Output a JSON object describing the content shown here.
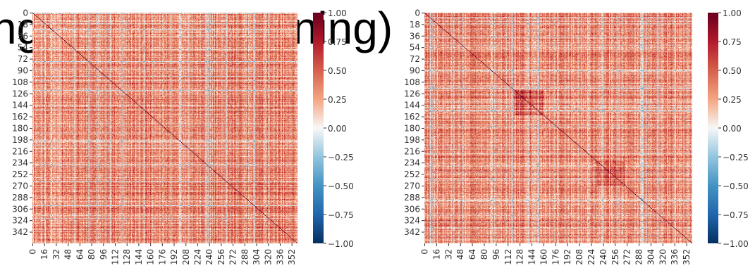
{
  "background_text": "ng                    ning)",
  "chart_data": [
    {
      "type": "heatmap",
      "title": "",
      "xlabel": "",
      "ylabel": "",
      "n": 360,
      "x_tick_labels": [
        "0",
        "16",
        "32",
        "48",
        "64",
        "80",
        "96",
        "112",
        "128",
        "144",
        "160",
        "176",
        "192",
        "208",
        "224",
        "240",
        "256",
        "272",
        "288",
        "304",
        "320",
        "336",
        "352"
      ],
      "y_tick_labels": [
        "0",
        "18",
        "36",
        "54",
        "72",
        "90",
        "108",
        "126",
        "144",
        "162",
        "180",
        "198",
        "216",
        "234",
        "252",
        "270",
        "288",
        "306",
        "324",
        "342"
      ],
      "diagonal_value": 1.0,
      "colorbar": {
        "range": [
          -1.0,
          1.0
        ],
        "tick_labels": [
          "1.00",
          "0.75",
          "0.50",
          "0.25",
          "0.00",
          "−0.25",
          "−0.50",
          "−0.75",
          "−1.00"
        ],
        "tick_values": [
          1.0,
          0.75,
          0.5,
          0.25,
          0.0,
          -0.25,
          -0.5,
          -0.75,
          -1.0
        ],
        "colormap": "RdBu_r"
      }
    },
    {
      "type": "heatmap",
      "title": "",
      "xlabel": "",
      "ylabel": "",
      "n": 360,
      "x_tick_labels": [
        "0",
        "16",
        "32",
        "48",
        "64",
        "80",
        "96",
        "112",
        "128",
        "144",
        "160",
        "176",
        "192",
        "208",
        "224",
        "240",
        "256",
        "272",
        "288",
        "304",
        "320",
        "336",
        "352"
      ],
      "y_tick_labels": [
        "0",
        "18",
        "36",
        "54",
        "72",
        "90",
        "108",
        "126",
        "144",
        "162",
        "180",
        "198",
        "216",
        "234",
        "252",
        "270",
        "288",
        "306",
        "324",
        "342"
      ],
      "diagonal_value": 1.0,
      "colorbar": {
        "range": [
          -1.0,
          1.0
        ],
        "tick_labels": [
          "1.00",
          "0.75",
          "0.50",
          "0.25",
          "0.00",
          "−0.25",
          "−0.50",
          "−0.75",
          "−1.00"
        ],
        "tick_values": [
          1.0,
          0.75,
          0.5,
          0.25,
          0.0,
          -0.25,
          -0.5,
          -0.75,
          -1.0
        ],
        "colormap": "RdBu_r"
      }
    }
  ]
}
